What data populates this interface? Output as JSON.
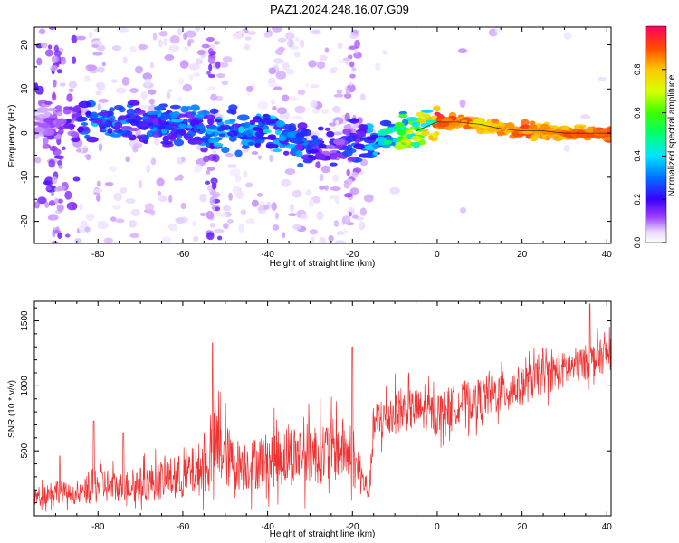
{
  "title": "PAZ1.2024.248.16.07.G09",
  "chart_data": [
    {
      "type": "heatmap",
      "xlabel": "Height of straight line (km)",
      "ylabel": "Frequency (Hz)",
      "xlim": [
        -95,
        41
      ],
      "ylim": [
        -25,
        24
      ],
      "xticks": [
        -80,
        -60,
        -40,
        -20,
        0,
        20,
        40
      ],
      "yticks": [
        -20,
        -10,
        0,
        10,
        20
      ],
      "colorbar": {
        "label": "Normalized spectral amplitude",
        "range": [
          0,
          1
        ],
        "ticks": [
          0.0,
          0.2,
          0.4,
          0.6,
          0.8
        ],
        "tick_labels": [
          "0.0",
          "0.2",
          "0.4",
          "0.6",
          "0.8"
        ]
      },
      "ridge": {
        "x": [
          -95,
          -90,
          -85,
          -80,
          -75,
          -70,
          -65,
          -60,
          -55,
          -50,
          -45,
          -40,
          -35,
          -30,
          -25,
          -20,
          -15,
          -10,
          -5,
          0,
          5,
          10,
          15,
          20,
          25,
          30,
          35,
          41
        ],
        "freq": [
          2.0,
          2.0,
          2.5,
          3.0,
          2.0,
          1.5,
          2.0,
          1.5,
          0.5,
          1.0,
          0.0,
          1.0,
          -1.0,
          -3.0,
          -4.0,
          -1.5,
          -1.5,
          -1.0,
          0.5,
          2.5,
          2.5,
          2.0,
          1.0,
          0.5,
          0.5,
          0.0,
          0.0,
          0.0
        ],
        "amplitude": [
          0.1,
          0.15,
          0.2,
          0.35,
          0.3,
          0.25,
          0.3,
          0.35,
          0.3,
          0.35,
          0.35,
          0.4,
          0.35,
          0.25,
          0.2,
          0.25,
          0.4,
          0.55,
          0.7,
          0.9,
          0.9,
          0.8,
          0.85,
          0.9,
          0.85,
          0.85,
          0.9,
          0.95
        ]
      }
    },
    {
      "type": "line",
      "xlabel": "Height of straight line (km)",
      "ylabel": "SNR (10 * v/v)",
      "xlim": [
        -95,
        41
      ],
      "ylim": [
        0,
        1650
      ],
      "xticks": [
        -80,
        -60,
        -40,
        -20,
        0,
        20,
        40
      ],
      "yticks": [
        500,
        1000,
        1500
      ],
      "color": "#ee3333",
      "envelope": {
        "x": [
          -95,
          -90,
          -85,
          -80,
          -75,
          -70,
          -65,
          -60,
          -55,
          -52,
          -48,
          -45,
          -40,
          -35,
          -30,
          -25,
          -22,
          -20,
          -18,
          -16,
          -15,
          -10,
          -5,
          0,
          5,
          10,
          15,
          20,
          25,
          30,
          35,
          41
        ],
        "mean": [
          140,
          200,
          150,
          250,
          220,
          240,
          280,
          300,
          380,
          550,
          400,
          390,
          430,
          470,
          480,
          500,
          520,
          420,
          300,
          180,
          700,
          800,
          820,
          780,
          870,
          900,
          950,
          1000,
          1080,
          1120,
          1180,
          1250
        ],
        "spread": [
          90,
          120,
          80,
          200,
          140,
          170,
          190,
          220,
          270,
          400,
          250,
          250,
          270,
          300,
          300,
          310,
          300,
          250,
          180,
          90,
          220,
          220,
          200,
          200,
          200,
          200,
          200,
          190,
          180,
          180,
          170,
          170
        ],
        "spikes": [
          {
            "x": -89,
            "y": 460
          },
          {
            "x": -81,
            "y": 730
          },
          {
            "x": -74,
            "y": 640
          },
          {
            "x": -53,
            "y": 1330
          },
          {
            "x": -20,
            "y": 1300
          },
          {
            "x": 36,
            "y": 1630
          }
        ]
      }
    }
  ]
}
